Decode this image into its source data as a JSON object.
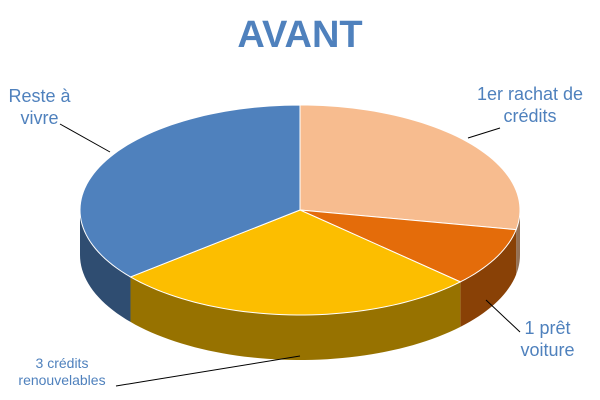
{
  "chart_data": {
    "type": "pie3d",
    "title": "AVANT",
    "categories": [
      "1er rachat de crédits",
      "1 prêt voiture",
      "3 crédits renouvelables",
      "Reste à vivre"
    ],
    "values": [
      28,
      9,
      27,
      36
    ],
    "colors": [
      "#f7bc8f",
      "#e46c0a",
      "#fcbe00",
      "#4f81bd"
    ]
  }
}
